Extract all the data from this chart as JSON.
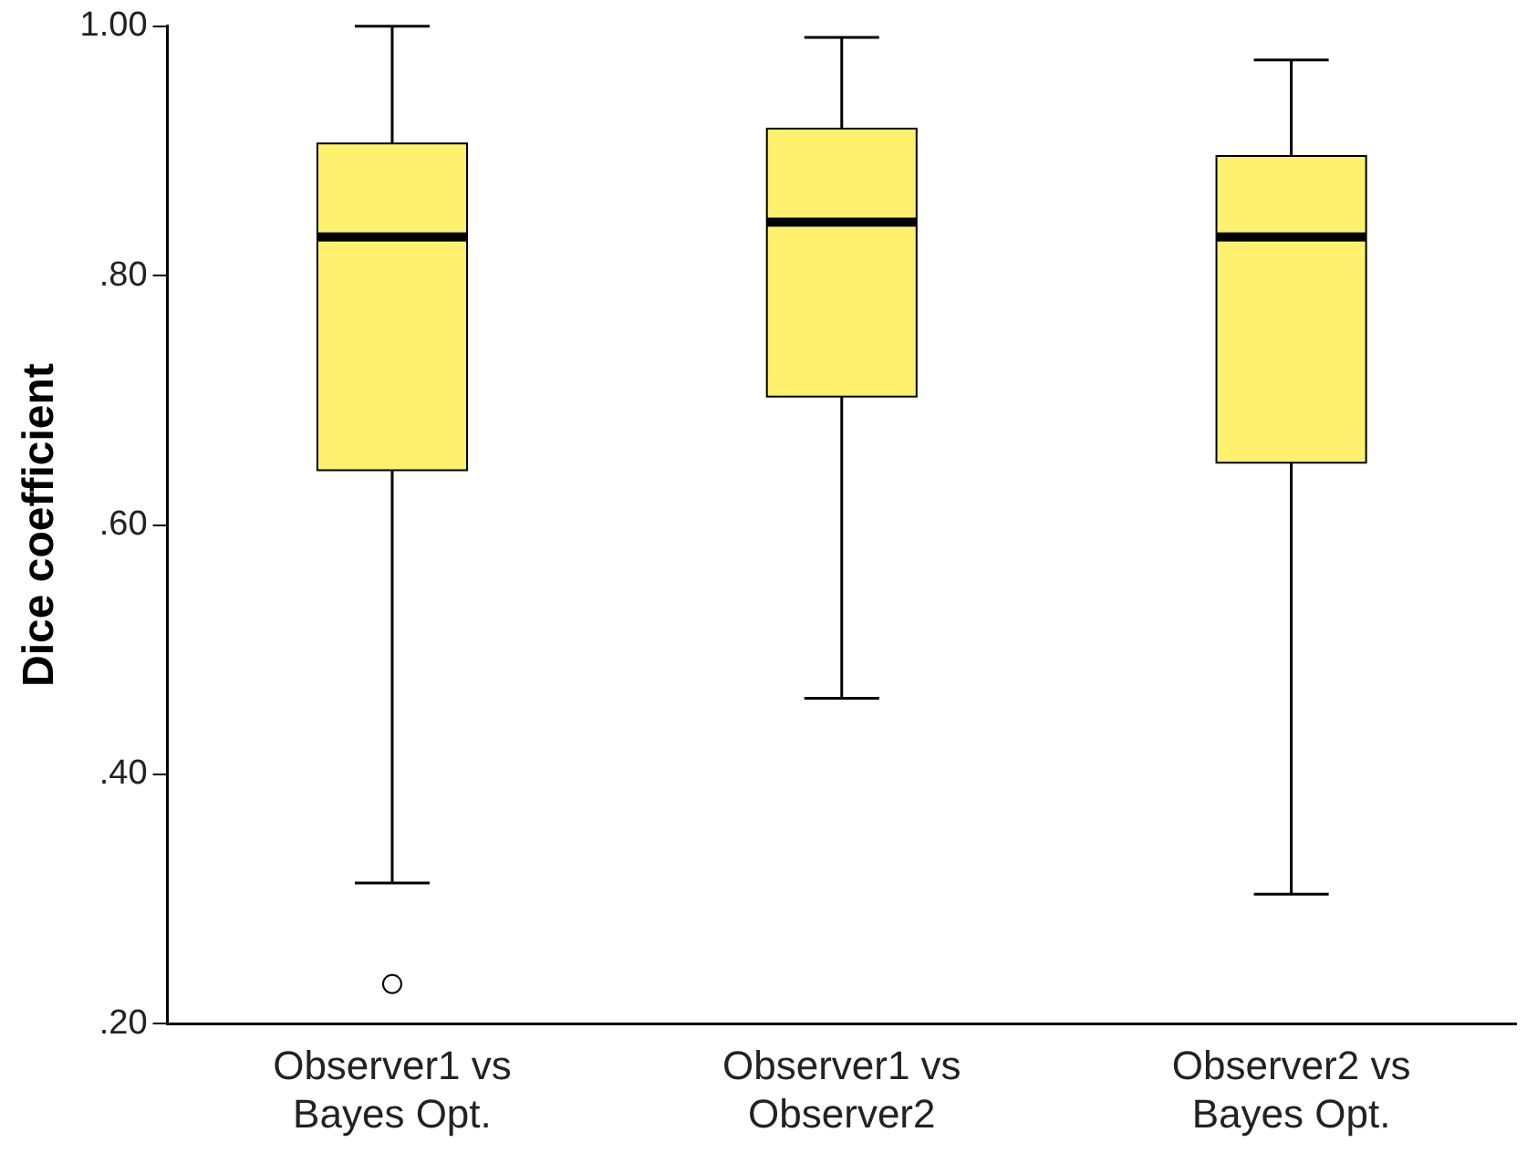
{
  "chart_data": {
    "type": "box",
    "ylabel": "Dice coefficient",
    "categories": [
      "Observer1 vs\nBayes Opt.",
      "Observer1 vs\nObserver2",
      "Observer2 vs\nBayes Opt."
    ],
    "color": "#fff06e",
    "boxes": [
      {
        "low": 0.313,
        "q1": 0.644,
        "median": 0.831,
        "q3": 0.906,
        "high": 1.0,
        "outliers": [
          0.232
        ]
      },
      {
        "low": 0.461,
        "q1": 0.703,
        "median": 0.843,
        "q3": 0.918,
        "high": 0.991
      },
      {
        "low": 0.304,
        "q1": 0.65,
        "median": 0.831,
        "q3": 0.896,
        "high": 0.973
      }
    ],
    "ylim": [
      0.2,
      1.0
    ],
    "yticks": [
      {
        "value": 0.2,
        "label": ".20"
      },
      {
        "value": 0.4,
        "label": ".40"
      },
      {
        "value": 0.6,
        "label": ".60"
      },
      {
        "value": 0.8,
        "label": ".80"
      },
      {
        "value": 1.0,
        "label": "1.00"
      }
    ],
    "grid": false,
    "legend": false
  }
}
